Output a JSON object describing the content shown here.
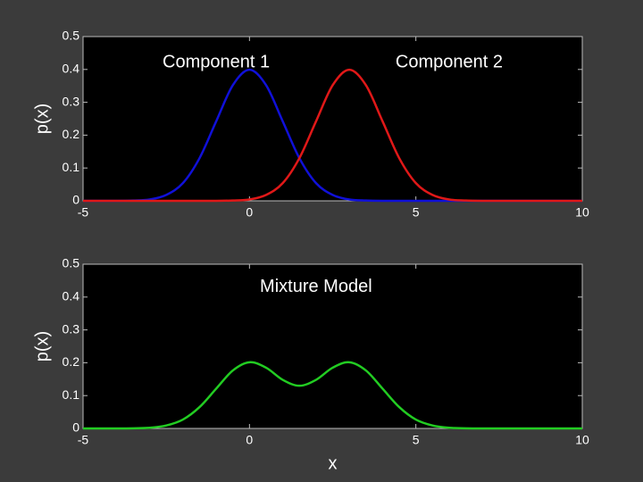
{
  "chart_data": [
    {
      "type": "line",
      "y_label": "p(x)",
      "annotations": [
        {
          "text": "Component 1",
          "x": -1,
          "y": 0.42
        },
        {
          "text": "Component 2",
          "x": 6,
          "y": 0.42
        }
      ],
      "x": [
        -5,
        -4.5,
        -4,
        -3.5,
        -3,
        -2.5,
        -2,
        -1.5,
        -1,
        -0.5,
        0,
        0.5,
        1,
        1.5,
        2,
        2.5,
        3,
        3.5,
        4,
        4.5,
        5,
        5.5,
        6,
        6.5,
        7,
        7.5,
        8,
        8.5,
        9,
        9.5,
        10
      ],
      "series": [
        {
          "name": "Component 1",
          "color": "#1010d8",
          "values": [
            0,
            0,
            0,
            0.001,
            0.004,
            0.018,
            0.054,
            0.13,
            0.242,
            0.352,
            0.399,
            0.352,
            0.242,
            0.13,
            0.054,
            0.018,
            0.004,
            0.001,
            0,
            0,
            0,
            0,
            0,
            0,
            0,
            0,
            0,
            0,
            0,
            0,
            0
          ]
        },
        {
          "name": "Component 2",
          "color": "#e01818",
          "values": [
            0,
            0,
            0,
            0,
            0,
            0,
            0,
            0,
            0,
            0.001,
            0.004,
            0.018,
            0.054,
            0.13,
            0.242,
            0.352,
            0.399,
            0.352,
            0.242,
            0.13,
            0.054,
            0.018,
            0.004,
            0.001,
            0,
            0,
            0,
            0,
            0,
            0,
            0
          ]
        }
      ],
      "xlim": [
        -5,
        10
      ],
      "xticks": [
        -5,
        0,
        5,
        10
      ],
      "ylim": [
        0,
        0.5
      ],
      "yticks": [
        0,
        0.1,
        0.2,
        0.3,
        0.4,
        0.5
      ]
    },
    {
      "type": "line",
      "y_label": "p(x)",
      "x_label": "x",
      "annotations": [
        {
          "text": "Mixture Model",
          "x": 2,
          "y": 0.43
        }
      ],
      "x": [
        -5,
        -4.5,
        -4,
        -3.5,
        -3,
        -2.5,
        -2,
        -1.5,
        -1,
        -0.5,
        0,
        0.5,
        1,
        1.5,
        2,
        2.5,
        3,
        3.5,
        4,
        4.5,
        5,
        5.5,
        6,
        6.5,
        7,
        7.5,
        8,
        8.5,
        9,
        9.5,
        10
      ],
      "series": [
        {
          "name": "Mixture Model",
          "color": "#22cc22",
          "values": [
            0,
            0,
            0,
            0.0005,
            0.002,
            0.009,
            0.027,
            0.065,
            0.121,
            0.1765,
            0.2015,
            0.185,
            0.148,
            0.13,
            0.148,
            0.185,
            0.2015,
            0.1765,
            0.121,
            0.065,
            0.027,
            0.009,
            0.002,
            0.0005,
            0,
            0,
            0,
            0,
            0,
            0,
            0
          ]
        }
      ],
      "xlim": [
        -5,
        10
      ],
      "xticks": [
        -5,
        0,
        5,
        10
      ],
      "ylim": [
        0,
        0.5
      ],
      "yticks": [
        0,
        0.1,
        0.2,
        0.3,
        0.4,
        0.5
      ]
    }
  ]
}
